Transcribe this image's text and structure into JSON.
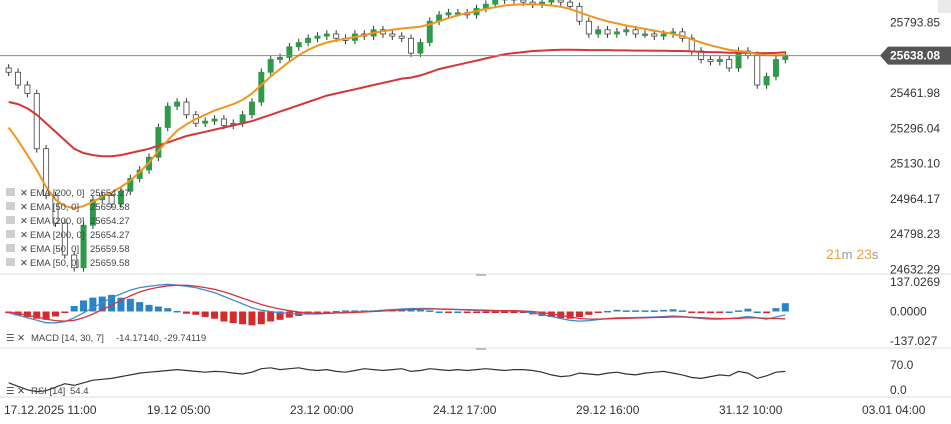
{
  "chart_data": [
    {
      "type": "candlestick",
      "instrument_panel": "price",
      "price_axis_ticks": [
        "25793.85",
        "25461.98",
        "25296.04",
        "25130.10",
        "24964.17",
        "24798.23",
        "24632.29"
      ],
      "price_axis_values": [
        25793.85,
        25461.98,
        25296.04,
        25130.1,
        24964.17,
        24798.23,
        24632.29
      ],
      "ylim": [
        24620,
        25900
      ],
      "current_price": 25638.08,
      "current_price_label": "25638.08",
      "timer": {
        "minutes": "21",
        "m": "m",
        "seconds": "23",
        "s": "s"
      },
      "x_tick_labels": [
        "17.12.2025  11:00",
        "19.12  05:00",
        "23.12  00:00",
        "24.12  17:00",
        "29.12  16:00",
        "31.12  10:00",
        "03.01  04:00"
      ],
      "close_series": [
        25560,
        25500,
        25460,
        25200,
        24980,
        24850,
        24700,
        24640,
        24840,
        24960,
        24980,
        24940,
        25000,
        25060,
        25100,
        25160,
        25300,
        25400,
        25420,
        25360,
        25320,
        25330,
        25340,
        25310,
        25320,
        25360,
        25420,
        25560,
        25620,
        25630,
        25680,
        25700,
        25720,
        25730,
        25740,
        25720,
        25710,
        25740,
        25730,
        25760,
        25740,
        25730,
        25720,
        25650,
        25700,
        25800,
        25830,
        25840,
        25840,
        25830,
        25860,
        25880,
        25900,
        25910,
        25900,
        25890,
        25880,
        25890,
        25900,
        25890,
        25870,
        25800,
        25740,
        25760,
        25740,
        25750,
        25760,
        25740,
        25740,
        25730,
        25740,
        25750,
        25720,
        25660,
        25620,
        25610,
        25620,
        25580,
        25660,
        25640,
        25500,
        25540,
        25620,
        25640
      ],
      "series": [
        {
          "name": "EMA [200, 0]",
          "color": "#d8343a",
          "values": [
            25420,
            25410,
            25390,
            25360,
            25320,
            25280,
            25240,
            25200,
            25180,
            25170,
            25165,
            25165,
            25170,
            25180,
            25190,
            25200,
            25215,
            25230,
            25245,
            25260,
            25270,
            25280,
            25290,
            25300,
            25310,
            25320,
            25330,
            25345,
            25360,
            25375,
            25390,
            25405,
            25420,
            25435,
            25450,
            25460,
            25470,
            25480,
            25490,
            25500,
            25510,
            25520,
            25530,
            25535,
            25545,
            25560,
            25575,
            25585,
            25595,
            25605,
            25615,
            25625,
            25635,
            25645,
            25650,
            25655,
            25660,
            25662,
            25664,
            25666,
            25666,
            25665,
            25664,
            25664,
            25664,
            25663,
            25663,
            25662,
            25662,
            25661,
            25661,
            25660,
            25660,
            25658,
            25656,
            25655,
            25654,
            25652,
            25652,
            25652,
            25650,
            25650,
            25651,
            25654
          ]
        },
        {
          "name": "EMA [50, 0]",
          "color": "#f0961e",
          "values": [
            25300,
            25240,
            25170,
            25100,
            25020,
            24960,
            24930,
            24920,
            24930,
            24950,
            24975,
            24995,
            25020,
            25050,
            25090,
            25135,
            25190,
            25240,
            25285,
            25315,
            25340,
            25360,
            25380,
            25395,
            25410,
            25430,
            25460,
            25500,
            25540,
            25575,
            25610,
            25640,
            25665,
            25685,
            25700,
            25710,
            25718,
            25726,
            25734,
            25745,
            25753,
            25760,
            25766,
            25770,
            25775,
            25785,
            25800,
            25815,
            25828,
            25838,
            25848,
            25858,
            25866,
            25874,
            25878,
            25880,
            25880,
            25878,
            25874,
            25868,
            25858,
            25842,
            25826,
            25812,
            25800,
            25790,
            25780,
            25772,
            25764,
            25756,
            25748,
            25740,
            25730,
            25715,
            25700,
            25687,
            25676,
            25665,
            25660,
            25656,
            25645,
            25640,
            25640,
            25640
          ]
        }
      ],
      "legend": [
        {
          "label": "EMA [200, 0]",
          "value": "25654.27"
        },
        {
          "label": "EMA [50, 0]",
          "value": "25659.58"
        },
        {
          "label": "EMA [200, 0]",
          "value": "25654.27"
        },
        {
          "label": "EMA [200, 0]",
          "value": "25654.27"
        },
        {
          "label": "EMA [50, 0]",
          "value": "25659.58"
        },
        {
          "label": "EMA [50, 0]",
          "value": "25659.58"
        }
      ]
    },
    {
      "type": "line",
      "instrument_panel": "macd",
      "axis_ticks": [
        "137.0269",
        "0.0000",
        "-137.027"
      ],
      "ylim": [
        -137.027,
        137.0269
      ],
      "label": "MACD [14, 30, 7]",
      "label_values": "-14.17140,   -29.74119",
      "series": [
        {
          "name": "MACD",
          "color": "#3b8fd0",
          "values": [
            -5,
            -15,
            -25,
            -35,
            -45,
            -45,
            -40,
            -25,
            -5,
            15,
            35,
            55,
            70,
            85,
            95,
            100,
            105,
            108,
            105,
            100,
            95,
            85,
            75,
            60,
            45,
            30,
            15,
            5,
            0,
            -5,
            -8,
            -10,
            -10,
            -10,
            -8,
            -5,
            -3,
            -2,
            0,
            2,
            5,
            8,
            10,
            12,
            12,
            12,
            10,
            8,
            8,
            6,
            4,
            3,
            2,
            2,
            2,
            0,
            -5,
            -12,
            -20,
            -28,
            -35,
            -38,
            -36,
            -32,
            -28,
            -25,
            -25,
            -24,
            -23,
            -22,
            -20,
            -18,
            -20,
            -24,
            -28,
            -30,
            -30,
            -28,
            -25,
            -20,
            -25,
            -30,
            -22,
            -14
          ]
        },
        {
          "name": "Signal",
          "color": "#d8343a",
          "values": [
            -2,
            -8,
            -15,
            -22,
            -30,
            -36,
            -38,
            -35,
            -25,
            -10,
            8,
            25,
            45,
            62,
            78,
            88,
            96,
            102,
            104,
            104,
            101,
            95,
            88,
            78,
            66,
            53,
            40,
            28,
            18,
            10,
            3,
            -2,
            -5,
            -7,
            -7,
            -6,
            -5,
            -4,
            -2,
            0,
            2,
            4,
            6,
            8,
            9,
            10,
            10,
            9,
            8,
            7,
            6,
            5,
            4,
            3,
            3,
            2,
            0,
            -4,
            -10,
            -16,
            -22,
            -28,
            -30,
            -30,
            -29,
            -28,
            -27,
            -26,
            -25,
            -24,
            -23,
            -22,
            -22,
            -23,
            -25,
            -27,
            -28,
            -28,
            -27,
            -25,
            -25,
            -27,
            -28,
            -29
          ]
        }
      ]
    },
    {
      "type": "line",
      "instrument_panel": "rsi",
      "axis_ticks": [
        "70.0",
        "0.0"
      ],
      "ylim": [
        0,
        100
      ],
      "label": "RSI [14]",
      "label_value": "54.4",
      "series": [
        {
          "name": "RSI",
          "color": "#333333",
          "values": [
            30,
            22,
            14,
            10,
            12,
            20,
            28,
            24,
            30,
            36,
            38,
            40,
            44,
            48,
            52,
            54,
            56,
            58,
            60,
            58,
            56,
            54,
            56,
            55,
            52,
            50,
            54,
            62,
            64,
            60,
            62,
            64,
            60,
            58,
            60,
            56,
            54,
            58,
            62,
            60,
            58,
            60,
            62,
            56,
            58,
            62,
            60,
            58,
            60,
            58,
            60,
            62,
            60,
            58,
            60,
            60,
            58,
            54,
            48,
            44,
            46,
            52,
            50,
            48,
            52,
            54,
            50,
            48,
            52,
            54,
            56,
            52,
            48,
            42,
            40,
            44,
            48,
            46,
            56,
            52,
            40,
            46,
            54,
            56
          ]
        }
      ]
    }
  ]
}
